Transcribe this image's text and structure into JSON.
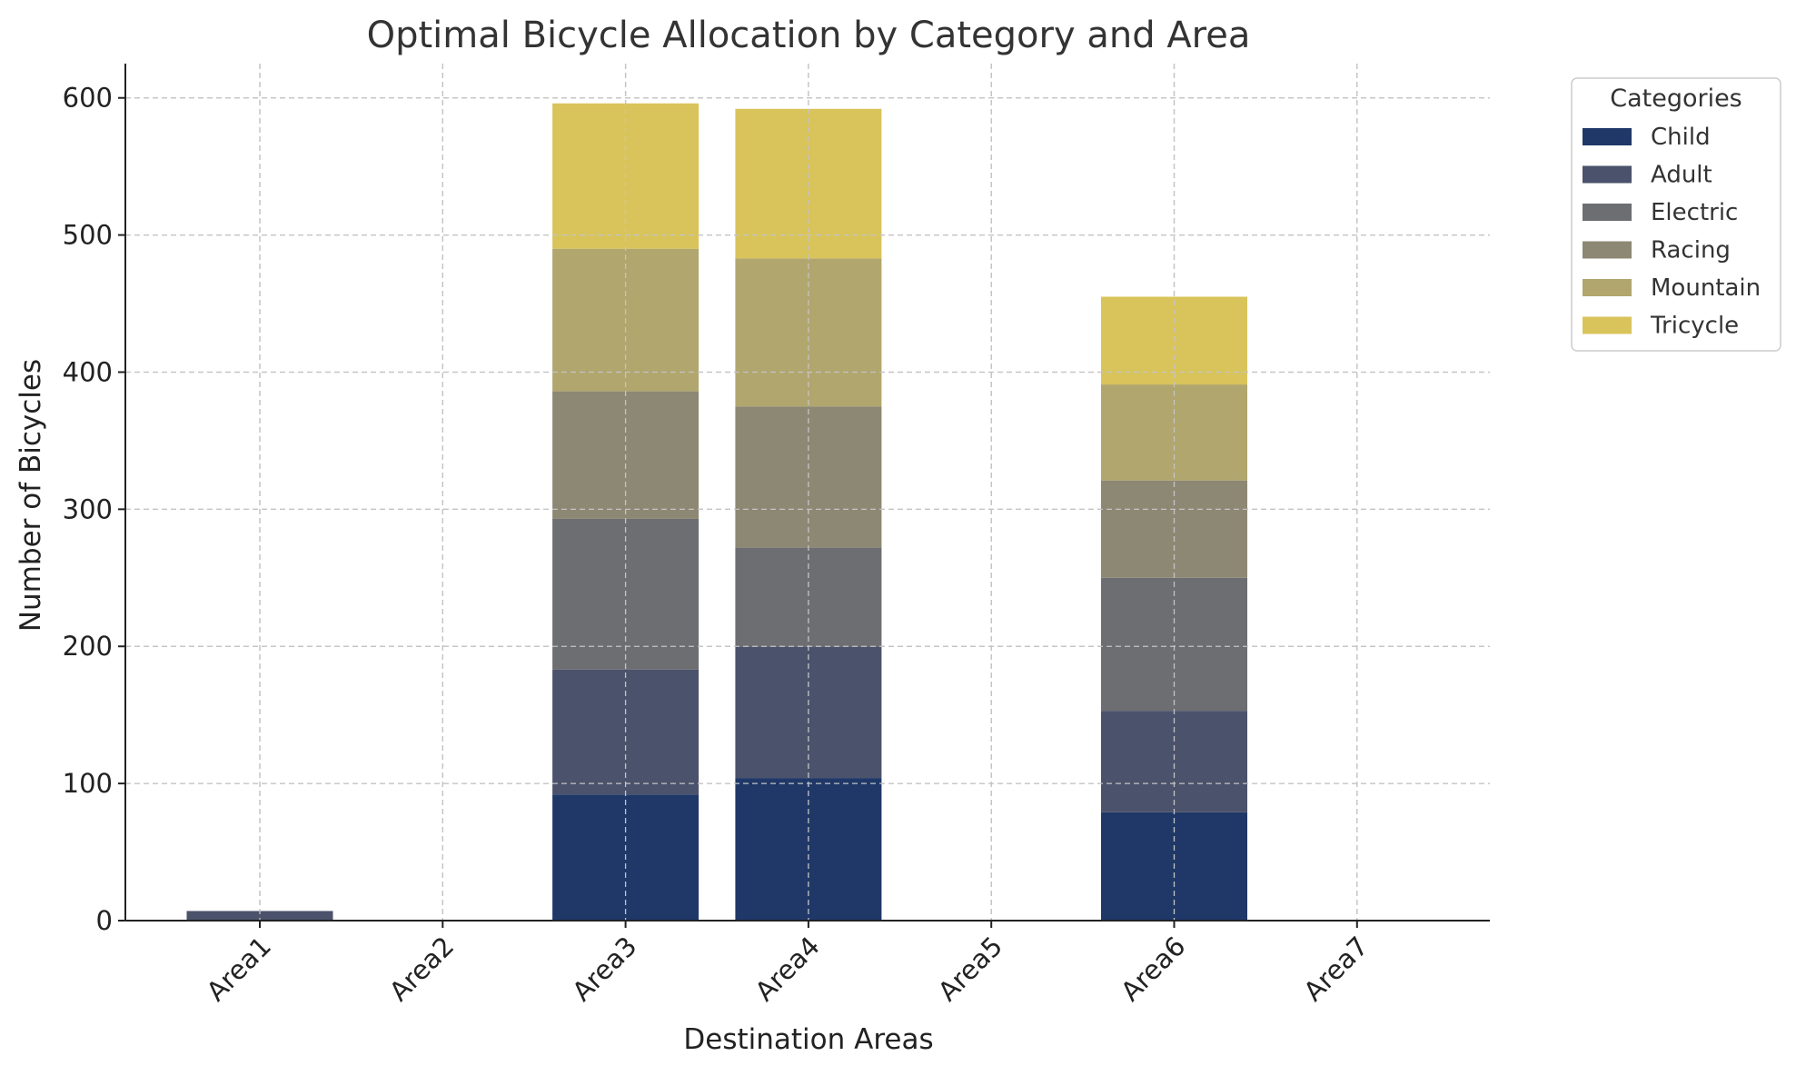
{
  "chart_data": {
    "type": "bar",
    "stacked": true,
    "title": "Optimal Bicycle Allocation by Category and Area",
    "xlabel": "Destination Areas",
    "ylabel": "Number of Bicycles",
    "ylim": [
      0,
      625
    ],
    "yticks": [
      0,
      100,
      200,
      300,
      400,
      500,
      600
    ],
    "categories": [
      "Area1",
      "Area2",
      "Area3",
      "Area4",
      "Area5",
      "Area6",
      "Area7"
    ],
    "grid": true,
    "legend": {
      "title": "Categories",
      "placement": "outside-top-right"
    },
    "series": [
      {
        "name": "Child",
        "color": "#1f3868",
        "values": [
          0,
          0,
          92,
          104,
          0,
          79,
          0
        ]
      },
      {
        "name": "Adult",
        "color": "#4b526b",
        "values": [
          7,
          0,
          91,
          96,
          0,
          74,
          0
        ]
      },
      {
        "name": "Electric",
        "color": "#6c6e72",
        "values": [
          0,
          0,
          110,
          72,
          0,
          97,
          0
        ]
      },
      {
        "name": "Racing",
        "color": "#8d8874",
        "values": [
          0,
          0,
          93,
          103,
          0,
          71,
          0
        ]
      },
      {
        "name": "Mountain",
        "color": "#b1a66d",
        "values": [
          0,
          0,
          104,
          108,
          0,
          70,
          0
        ]
      },
      {
        "name": "Tricycle",
        "color": "#d9c45b",
        "values": [
          0,
          0,
          106,
          109,
          0,
          64,
          0
        ]
      }
    ]
  }
}
